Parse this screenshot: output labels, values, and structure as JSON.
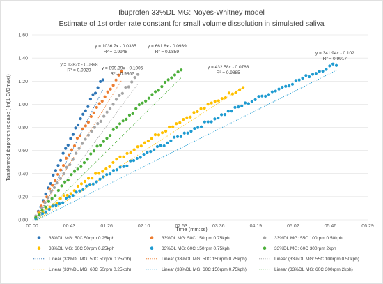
{
  "chart_data": {
    "type": "scatter",
    "title": "Ibuprofen 33%DL MG: Noyes-Whitney model",
    "subtitle": "Estimate of 1st order rate constant for small volume dissolution in simulated saliva",
    "xlabel": "Time (mm:ss)",
    "ylabel": "Tansformed ibuprofen release (-ln(1-C/Cmax))",
    "x_unit_note": "x values in days (Excel time fraction)",
    "xlim": [
      0,
      0.0045
    ],
    "ylim": [
      0,
      1.6
    ],
    "x_ticks": [
      {
        "value": 0,
        "label": "00:00"
      },
      {
        "value": 0.0005,
        "label": "00:43"
      },
      {
        "value": 0.001,
        "label": "01:26"
      },
      {
        "value": 0.0015,
        "label": "02:10"
      },
      {
        "value": 0.002,
        "label": "02:53"
      },
      {
        "value": 0.0025,
        "label": "03:36"
      },
      {
        "value": 0.003,
        "label": "04:19"
      },
      {
        "value": 0.0035,
        "label": "05:02"
      },
      {
        "value": 0.004,
        "label": "05:46"
      },
      {
        "value": 0.0045,
        "label": "06:29"
      }
    ],
    "y_ticks": [
      {
        "value": 0,
        "label": "0.00"
      },
      {
        "value": 0.2,
        "label": "0.20"
      },
      {
        "value": 0.4,
        "label": "0.40"
      },
      {
        "value": 0.6,
        "label": "0.60"
      },
      {
        "value": 0.8,
        "label": "0.80"
      },
      {
        "value": 1.0,
        "label": "1.00"
      },
      {
        "value": 1.2,
        "label": "1.20"
      },
      {
        "value": 1.4,
        "label": "1.40"
      },
      {
        "value": 1.6,
        "label": "1.60"
      }
    ],
    "grid": "horizontal",
    "legend_position": "bottom",
    "series": [
      {
        "name": "33%DL MG: 50C 50rpm 0.25kph",
        "trend_name": "Linear (33%DL MG: 50C 50rpm 0.25kph)",
        "color": "#2e75b6",
        "slope": 1282,
        "intercept": -0.0898,
        "x_start": 5e-05,
        "x_end": 0.00095,
        "n_points": 28,
        "final_y": 1.22,
        "equation": "y = 1282x - 0.0898",
        "r2": "R² = 0.9929",
        "label_x": 0.00063,
        "label_y": 1.33
      },
      {
        "name": "33%DL MG: 50C 150rpm 0.75kph",
        "trend_name": "Linear (33%DL MG: 50C 150rpm 0.75kph)",
        "color": "#ed7d31",
        "slope": 1036.7,
        "intercept": -0.0385,
        "x_start": 5e-05,
        "x_end": 0.0012,
        "n_points": 32,
        "final_y": 1.28,
        "equation": "y = 1036.7x - 0.0385",
        "r2": "R² = 0.9948",
        "label_x": 0.00112,
        "label_y": 1.49
      },
      {
        "name": "33%DL MG: 55C 100rpm 0.50kph",
        "trend_name": "Linear (33%DL MG: 55C 100rpm 0.50kph)",
        "color": "#a5a5a5",
        "slope": 899.39,
        "intercept": -0.1005,
        "x_start": 5e-05,
        "x_end": 0.00142,
        "n_points": 34,
        "final_y": 1.26,
        "equation": "y = 899.39x - 0.1005",
        "r2": "R² = 0.9862",
        "label_x": 0.00121,
        "label_y": 1.3
      },
      {
        "name": "33%DL MG: 60C 50rpm 0.25kph",
        "trend_name": "Linear (33%DL MG: 60C 50rpm 0.25kph)",
        "color": "#ffc000",
        "slope": 432.58,
        "intercept": -0.0763,
        "x_start": 5e-05,
        "x_end": 0.00283,
        "n_points": 60,
        "final_y": 1.15,
        "equation": "y = 432.58x - 0.0763",
        "r2": "R² = 0.9885",
        "label_x": 0.00263,
        "label_y": 1.31
      },
      {
        "name": "33%DL MG: 60C 150rpm 0.75kph",
        "trend_name": "Linear (33%DL MG: 60C 150rpm 0.75kph)",
        "color": "#1f9bd1",
        "slope": 341.94,
        "intercept": -0.102,
        "x_start": 5e-05,
        "x_end": 0.00408,
        "n_points": 90,
        "final_y": 1.35,
        "equation": "y = 341.94x - 0.102",
        "r2": "R² = 0.9917",
        "label_x": 0.00406,
        "label_y": 1.43
      },
      {
        "name": "33%DL MG: 60C 300rpm 2kph",
        "trend_name": "Linear (33%DL MG: 60C 300rpm 2kph)",
        "color": "#4caf3a",
        "slope": 661.8,
        "intercept": -0.0939,
        "x_start": 5e-05,
        "x_end": 0.002,
        "n_points": 46,
        "final_y": 1.3,
        "equation": "y = 661.8x - 0.0939",
        "r2": "R² = 0.9859",
        "label_x": 0.00181,
        "label_y": 1.49
      }
    ]
  }
}
